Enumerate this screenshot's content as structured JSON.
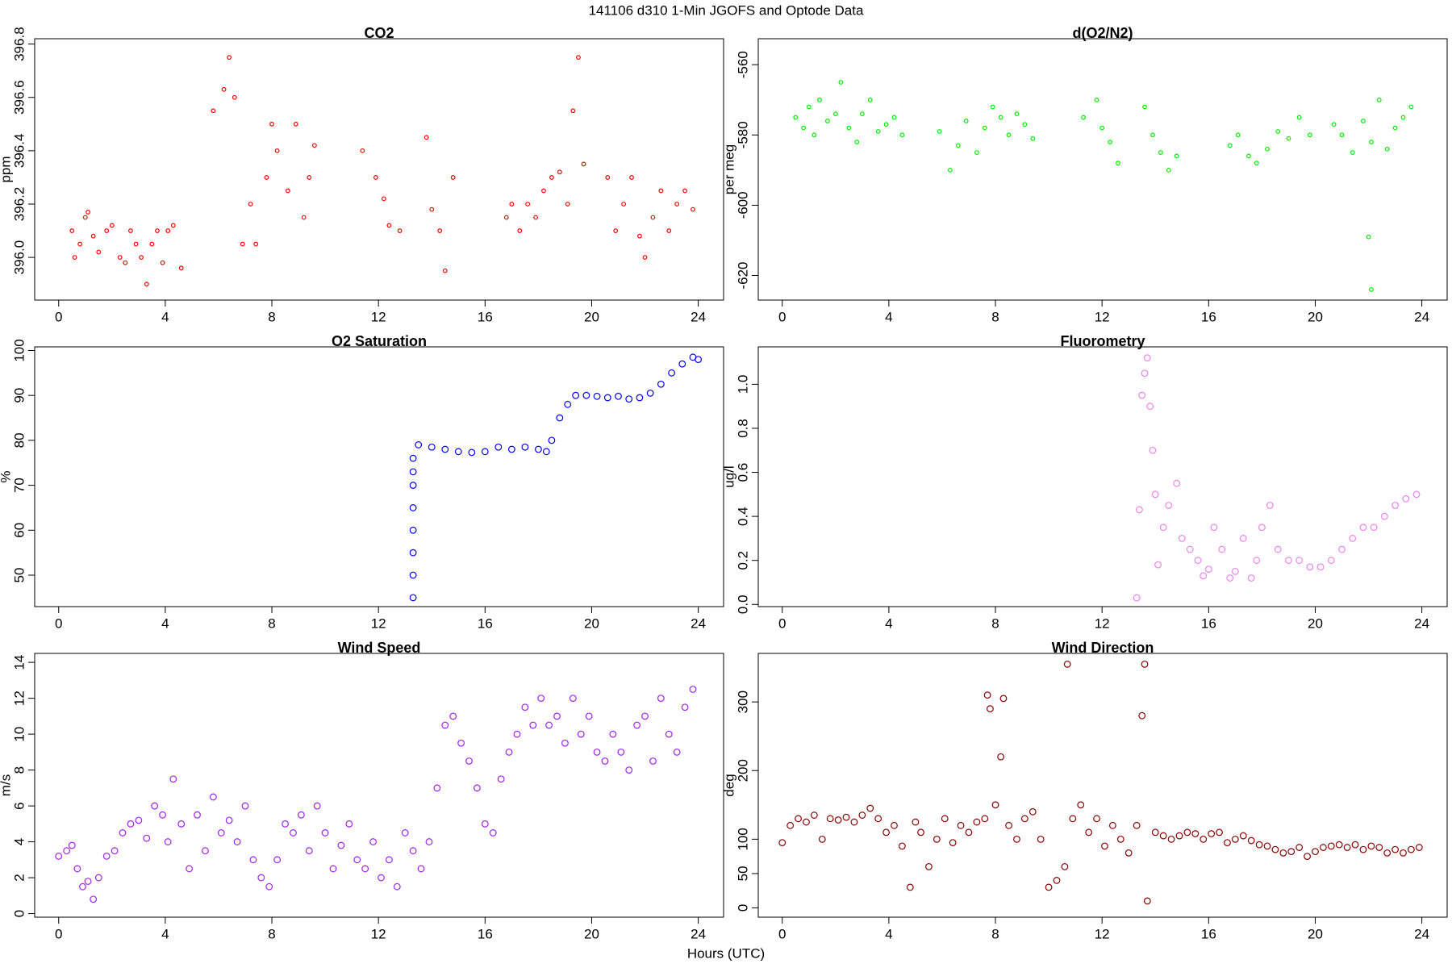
{
  "title": "141106   d310   1-Min  JGOFS and Optode Data",
  "xlabel": "Hours (UTC)",
  "chart_data": [
    {
      "type": "scatter",
      "title": "CO2",
      "ylabel": "ppm",
      "color": "#ff0000",
      "xlim": [
        -0.9,
        24.95
      ],
      "xticks": [
        0,
        4,
        8,
        12,
        16,
        20,
        24
      ],
      "ylim": [
        395.84,
        396.82
      ],
      "yticks": [
        {
          "value": 396.0,
          "label": "396.0"
        },
        {
          "value": 396.2,
          "label": "396.2"
        },
        {
          "value": 396.4,
          "label": "396.4"
        },
        {
          "value": 396.6,
          "label": "396.6"
        },
        {
          "value": 396.8,
          "label": "396.8"
        }
      ],
      "x": [
        0.5,
        0.6,
        0.8,
        1.0,
        1.1,
        1.3,
        1.5,
        1.8,
        2.0,
        2.3,
        2.5,
        2.7,
        2.9,
        3.1,
        3.3,
        3.5,
        3.7,
        3.9,
        4.1,
        4.3,
        4.6,
        5.8,
        6.2,
        6.4,
        6.6,
        6.9,
        7.2,
        7.4,
        7.8,
        8.0,
        8.2,
        8.6,
        8.9,
        9.2,
        9.4,
        9.6,
        11.4,
        11.9,
        12.2,
        12.4,
        12.8,
        13.8,
        14.0,
        14.3,
        14.5,
        14.8,
        16.8,
        17.0,
        17.3,
        17.6,
        17.9,
        18.2,
        18.5,
        18.8,
        19.1,
        19.3,
        19.5,
        19.7,
        20.6,
        20.9,
        21.2,
        21.5,
        21.8,
        22.0,
        22.3,
        22.6,
        22.9,
        23.2,
        23.5,
        23.8
      ],
      "values": [
        396.1,
        396.0,
        396.05,
        396.15,
        396.17,
        396.08,
        396.02,
        396.1,
        396.12,
        396.0,
        395.98,
        396.1,
        396.05,
        396.0,
        395.9,
        396.05,
        396.1,
        395.98,
        396.1,
        396.12,
        395.96,
        396.55,
        396.63,
        396.75,
        396.6,
        396.05,
        396.2,
        396.05,
        396.3,
        396.5,
        396.4,
        396.25,
        396.5,
        396.15,
        396.3,
        396.42,
        396.4,
        396.3,
        396.22,
        396.12,
        396.1,
        396.45,
        396.18,
        396.1,
        395.95,
        396.3,
        396.15,
        396.2,
        396.1,
        396.2,
        396.15,
        396.25,
        396.3,
        396.32,
        396.2,
        396.55,
        396.75,
        396.35,
        396.3,
        396.1,
        396.2,
        396.3,
        396.08,
        396.0,
        396.15,
        396.25,
        396.1,
        396.2,
        396.25,
        396.18
      ]
    },
    {
      "type": "scatter",
      "title": "d(O2/N2)",
      "ylabel": "per meg",
      "color": "#00ee00",
      "xlim": [
        -0.9,
        24.95
      ],
      "xticks": [
        0,
        4,
        8,
        12,
        16,
        20,
        24
      ],
      "ylim": [
        -627,
        -552.6
      ],
      "yticks": [
        -620,
        -600,
        -580,
        -560
      ],
      "x": [
        0.5,
        0.8,
        1.0,
        1.2,
        1.4,
        1.7,
        2.0,
        2.2,
        2.5,
        2.8,
        3.0,
        3.3,
        3.6,
        3.9,
        4.2,
        4.5,
        5.9,
        6.3,
        6.6,
        6.9,
        7.3,
        7.6,
        7.9,
        8.2,
        8.5,
        8.8,
        9.1,
        9.4,
        11.3,
        11.8,
        12.0,
        12.3,
        12.6,
        13.6,
        13.9,
        14.2,
        14.5,
        14.8,
        16.8,
        17.1,
        17.5,
        17.8,
        18.2,
        18.6,
        19.0,
        19.4,
        19.8,
        20.7,
        21.0,
        21.4,
        21.8,
        22.0,
        22.1,
        22.1,
        22.4,
        22.7,
        23.0,
        23.3,
        23.6
      ],
      "values": [
        -575,
        -578,
        -572,
        -580,
        -570,
        -576,
        -574,
        -565,
        -578,
        -582,
        -574,
        -570,
        -579,
        -577,
        -575,
        -580,
        -579,
        -590,
        -583,
        -576,
        -585,
        -578,
        -572,
        -575,
        -580,
        -574,
        -577,
        -581,
        -575,
        -570,
        -578,
        -582,
        -588,
        -572,
        -580,
        -585,
        -590,
        -586,
        -583,
        -580,
        -586,
        -588,
        -584,
        -579,
        -581,
        -575,
        -580,
        -577,
        -580,
        -585,
        -576,
        -609,
        -582,
        -624,
        -570,
        -584,
        -578,
        -575,
        -572
      ]
    },
    {
      "type": "scatter",
      "title": "O2 Saturation",
      "ylabel": "%",
      "color": "#0000ff",
      "xlim": [
        -0.9,
        24.95
      ],
      "xticks": [
        0,
        4,
        8,
        12,
        16,
        20,
        24
      ],
      "ylim": [
        43,
        100.8
      ],
      "yticks": [
        50,
        60,
        70,
        80,
        90,
        100
      ],
      "x": [
        13.3,
        13.3,
        13.3,
        13.3,
        13.3,
        13.3,
        13.3,
        13.3,
        13.5,
        14,
        14.5,
        15,
        15.5,
        16,
        16.5,
        17,
        17.5,
        18,
        18.3,
        18.5,
        18.8,
        19.1,
        19.4,
        19.8,
        20.2,
        20.6,
        21,
        21.4,
        21.8,
        22.2,
        22.6,
        23,
        23.4,
        23.8,
        24
      ],
      "values": [
        45,
        50,
        55,
        60,
        65,
        70,
        73,
        76,
        79,
        78.5,
        78,
        77.5,
        77.3,
        77.5,
        78.5,
        78,
        78.5,
        78,
        77.5,
        80,
        85,
        88,
        90,
        90,
        89.8,
        89.5,
        89.8,
        89.2,
        89.5,
        90.5,
        92.5,
        95,
        97,
        98.5,
        98
      ]
    },
    {
      "type": "scatter",
      "title": "Fluorometry",
      "ylabel": "ug/l",
      "color": "#ee82ee",
      "xlim": [
        -0.9,
        24.95
      ],
      "xticks": [
        0,
        4,
        8,
        12,
        16,
        20,
        24
      ],
      "ylim": [
        -0.01,
        1.17
      ],
      "yticks": [
        {
          "value": 0.0,
          "label": "0.0"
        },
        0.2,
        0.4,
        0.6,
        0.8,
        {
          "value": 1.0,
          "label": "1.0"
        }
      ],
      "x": [
        13.3,
        13.4,
        13.5,
        13.6,
        13.7,
        13.8,
        13.9,
        14.0,
        14.1,
        14.3,
        14.5,
        14.8,
        15.0,
        15.3,
        15.6,
        15.8,
        16.0,
        16.2,
        16.5,
        16.8,
        17.0,
        17.3,
        17.6,
        17.8,
        18.0,
        18.3,
        18.6,
        19.0,
        19.4,
        19.8,
        20.2,
        20.6,
        21.0,
        21.4,
        21.8,
        22.2,
        22.6,
        23.0,
        23.4,
        23.8
      ],
      "values": [
        0.03,
        0.43,
        0.95,
        1.05,
        1.12,
        0.9,
        0.7,
        0.5,
        0.18,
        0.35,
        0.45,
        0.55,
        0.3,
        0.25,
        0.2,
        0.13,
        0.16,
        0.35,
        0.25,
        0.12,
        0.15,
        0.3,
        0.12,
        0.2,
        0.35,
        0.45,
        0.25,
        0.2,
        0.2,
        0.17,
        0.17,
        0.2,
        0.25,
        0.3,
        0.35,
        0.35,
        0.4,
        0.45,
        0.48,
        0.5
      ]
    },
    {
      "type": "scatter",
      "title": "Wind Speed",
      "ylabel": "m/s",
      "color": "#a020f0",
      "xlim": [
        -0.9,
        24.95
      ],
      "xticks": [
        0,
        4,
        8,
        12,
        16,
        20,
        24
      ],
      "ylim": [
        -0.2,
        14.5
      ],
      "yticks": [
        0,
        2,
        4,
        6,
        8,
        10,
        12,
        14
      ],
      "x": [
        0,
        0.3,
        0.5,
        0.7,
        0.9,
        1.1,
        1.3,
        1.5,
        1.8,
        2.1,
        2.4,
        2.7,
        3.0,
        3.3,
        3.6,
        3.9,
        4.1,
        4.3,
        4.6,
        4.9,
        5.2,
        5.5,
        5.8,
        6.1,
        6.4,
        6.7,
        7.0,
        7.3,
        7.6,
        7.9,
        8.2,
        8.5,
        8.8,
        9.1,
        9.4,
        9.7,
        10.0,
        10.3,
        10.6,
        10.9,
        11.2,
        11.5,
        11.8,
        12.1,
        12.4,
        12.7,
        13.0,
        13.3,
        13.6,
        13.9,
        14.2,
        14.5,
        14.8,
        15.1,
        15.4,
        15.7,
        16.0,
        16.3,
        16.6,
        16.9,
        17.2,
        17.5,
        17.8,
        18.1,
        18.4,
        18.7,
        19.0,
        19.3,
        19.6,
        19.9,
        20.2,
        20.5,
        20.8,
        21.1,
        21.4,
        21.7,
        22.0,
        22.3,
        22.6,
        22.9,
        23.2,
        23.5,
        23.8
      ],
      "values": [
        3.2,
        3.5,
        3.8,
        2.5,
        1.5,
        1.8,
        0.8,
        2,
        3.2,
        3.5,
        4.5,
        5,
        5.2,
        4.2,
        6,
        5.5,
        4,
        7.5,
        5,
        2.5,
        5.5,
        3.5,
        6.5,
        4.5,
        5.2,
        4,
        6,
        3,
        2,
        1.5,
        3,
        5,
        4.5,
        5.5,
        3.5,
        6,
        4.5,
        2.5,
        3.8,
        5,
        3,
        2.5,
        4,
        2,
        3,
        1.5,
        4.5,
        3.5,
        2.5,
        4,
        7,
        10.5,
        11,
        9.5,
        8.5,
        7,
        5,
        4.5,
        7.5,
        9,
        10,
        11.5,
        10.5,
        12,
        10.5,
        11,
        9.5,
        12,
        10,
        11,
        9,
        8.5,
        10,
        9,
        8,
        10.5,
        11,
        8.5,
        12,
        10,
        9,
        11.5,
        12.5
      ]
    },
    {
      "type": "scatter",
      "title": "Wind Direction",
      "ylabel": "deg",
      "color": "#8b0000",
      "xlim": [
        -0.9,
        24.95
      ],
      "xticks": [
        0,
        4,
        8,
        12,
        16,
        20,
        24
      ],
      "ylim": [
        -13.6,
        370.7
      ],
      "yticks": [
        0,
        50,
        100,
        200,
        300
      ],
      "x": [
        0,
        0.3,
        0.6,
        0.9,
        1.2,
        1.5,
        1.8,
        2.1,
        2.4,
        2.7,
        3.0,
        3.3,
        3.6,
        3.9,
        4.2,
        4.5,
        4.8,
        5.0,
        5.2,
        5.5,
        5.8,
        6.1,
        6.4,
        6.7,
        7.0,
        7.3,
        7.6,
        7.7,
        7.8,
        8.0,
        8.2,
        8.3,
        8.5,
        8.8,
        9.1,
        9.4,
        9.7,
        10.0,
        10.3,
        10.6,
        10.7,
        10.9,
        11.2,
        11.5,
        11.8,
        12.1,
        12.4,
        12.7,
        13.0,
        13.3,
        13.5,
        13.6,
        13.7,
        14.0,
        14.3,
        14.6,
        14.9,
        15.2,
        15.5,
        15.8,
        16.1,
        16.4,
        16.7,
        17.0,
        17.3,
        17.6,
        17.9,
        18.2,
        18.5,
        18.8,
        19.1,
        19.4,
        19.7,
        20.0,
        20.3,
        20.6,
        20.9,
        21.2,
        21.5,
        21.8,
        22.1,
        22.4,
        22.7,
        23.0,
        23.3,
        23.6,
        23.9
      ],
      "values": [
        95,
        120,
        130,
        125,
        135,
        100,
        130,
        128,
        132,
        125,
        135,
        145,
        130,
        110,
        120,
        90,
        30,
        125,
        110,
        60,
        100,
        130,
        95,
        120,
        110,
        125,
        130,
        310,
        290,
        150,
        220,
        305,
        120,
        100,
        130,
        140,
        100,
        30,
        40,
        60,
        355,
        130,
        150,
        110,
        130,
        90,
        120,
        100,
        80,
        120,
        280,
        355,
        10,
        110,
        105,
        100,
        105,
        110,
        108,
        100,
        108,
        110,
        95,
        100,
        105,
        98,
        92,
        90,
        85,
        80,
        82,
        88,
        75,
        82,
        88,
        90,
        92,
        88,
        92,
        85,
        90,
        88,
        80,
        85,
        80,
        85,
        88
      ]
    }
  ]
}
